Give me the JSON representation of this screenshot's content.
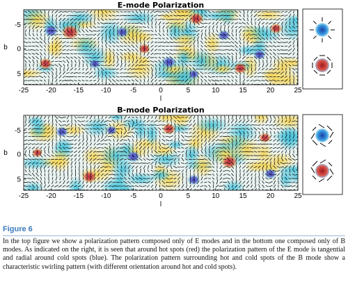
{
  "figure": {
    "panels": [
      {
        "title": "E-mode Polarization",
        "xlabel": "l",
        "ylabel": "b",
        "xticks": [
          "-25",
          "-20",
          "-15",
          "-10",
          "-5",
          "0",
          "5",
          "10",
          "15",
          "20",
          "25"
        ],
        "yticks": [
          "-5",
          "0",
          "5"
        ],
        "legend_note": "E mode: tangential around hot spots, radial around cold spots"
      },
      {
        "title": "B-mode Polarization",
        "xlabel": "l",
        "ylabel": "b",
        "xticks": [
          "-25",
          "-20",
          "-15",
          "-10",
          "-5",
          "0",
          "5",
          "10",
          "15",
          "20",
          "25"
        ],
        "yticks": [
          "-5",
          "0",
          "5"
        ],
        "legend_note": "B mode: swirling pattern with opposite orientation around hot and cold spots"
      }
    ],
    "colors": {
      "hot": "#c0392b",
      "cold": "#1e88e5",
      "warm": "#f2d25a",
      "cool": "#58c7d8",
      "link": "#3a7bbd"
    }
  },
  "caption": {
    "label": "Figure 6",
    "text": "In the top figure we show a polarization pattern composed only of E modes and in the bottom one composed only of B modes. As indicated on the right, it is seen that around hot spots (red) the polarization pattern of the E mode is tangential and radial around cold spots (blue). The polarization pattern surrounding hot and cold spots of the B mode show a characteristic swirling pattern (with different orientation around hot and cold spots)."
  }
}
